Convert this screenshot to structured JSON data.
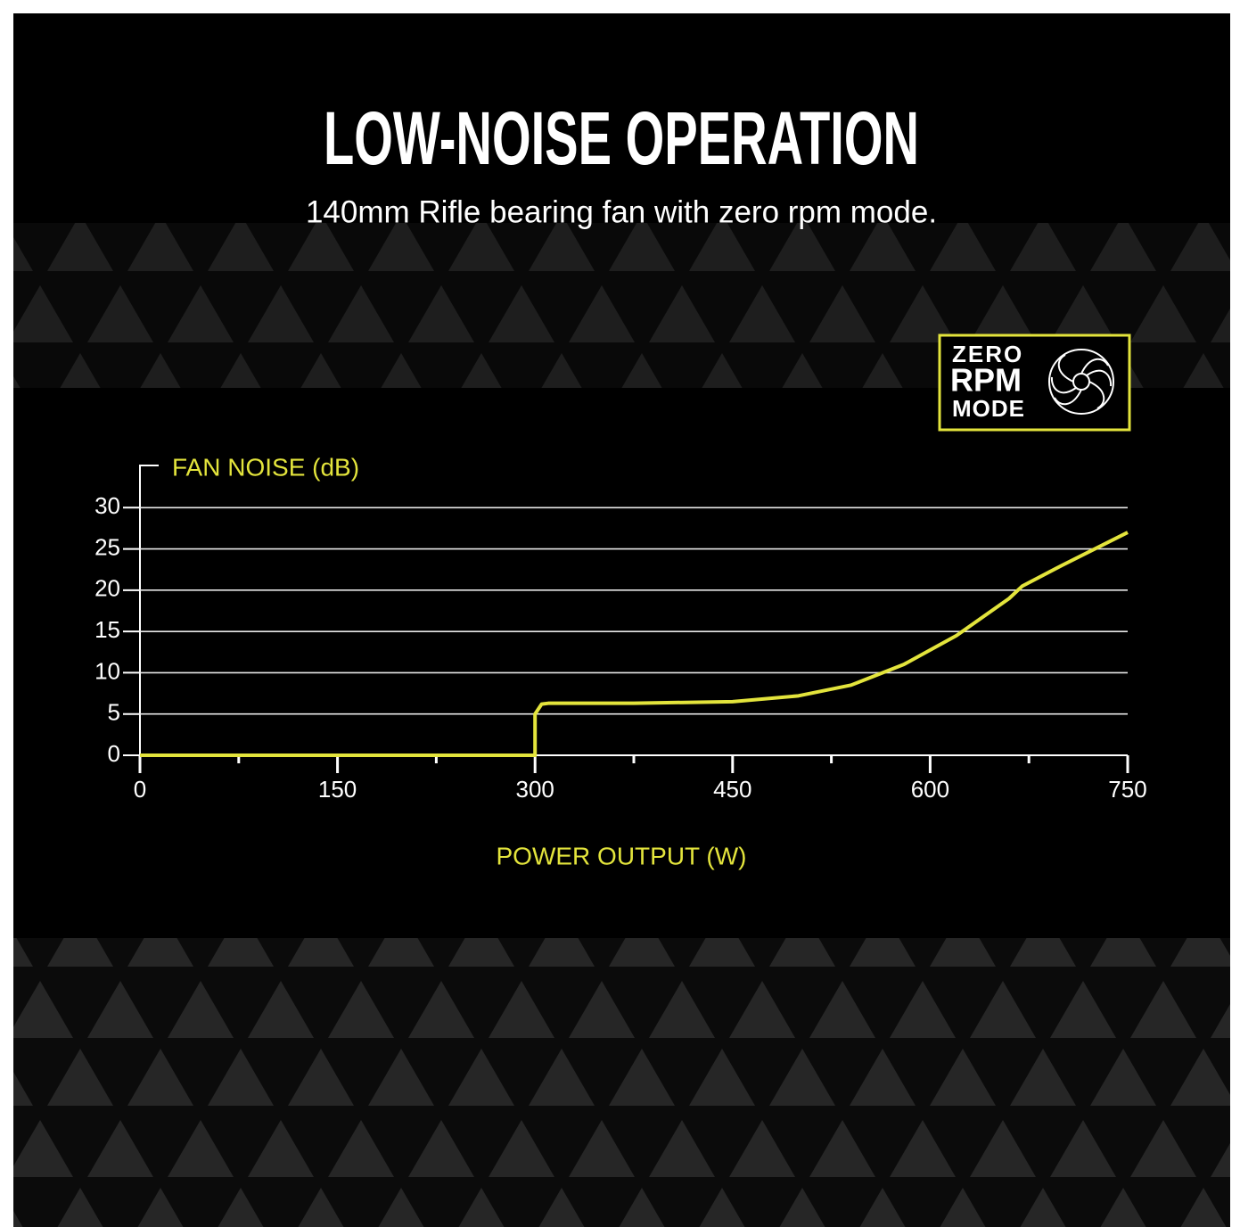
{
  "title": "LOW-NOISE OPERATION",
  "subtitle": "140mm Rifle bearing fan with zero rpm mode.",
  "badge": {
    "line1": "ZERO",
    "line2": "RPM",
    "line3": "MODE"
  },
  "chart_data": {
    "type": "line",
    "y_label": "FAN NOISE (dB)",
    "x_label": "POWER OUTPUT (W)",
    "x": [
      0,
      300,
      300,
      305,
      310,
      375,
      450,
      500,
      540,
      580,
      620,
      660,
      670,
      700,
      750
    ],
    "series": [
      {
        "name": "Fan noise",
        "color": "#e3e43c",
        "values": [
          0,
          0,
          5,
          6.2,
          6.3,
          6.3,
          6.5,
          7.2,
          8.5,
          11,
          14.5,
          19,
          20.5,
          23,
          27
        ]
      }
    ],
    "xlim": [
      0,
      750
    ],
    "xticks": [
      0,
      150,
      300,
      450,
      600,
      750
    ],
    "xminorticks": [
      75,
      225,
      375,
      525,
      675
    ],
    "ylim": [
      0,
      35
    ],
    "yticks": [
      0,
      5,
      10,
      15,
      20,
      25,
      30
    ],
    "grid": true
  }
}
